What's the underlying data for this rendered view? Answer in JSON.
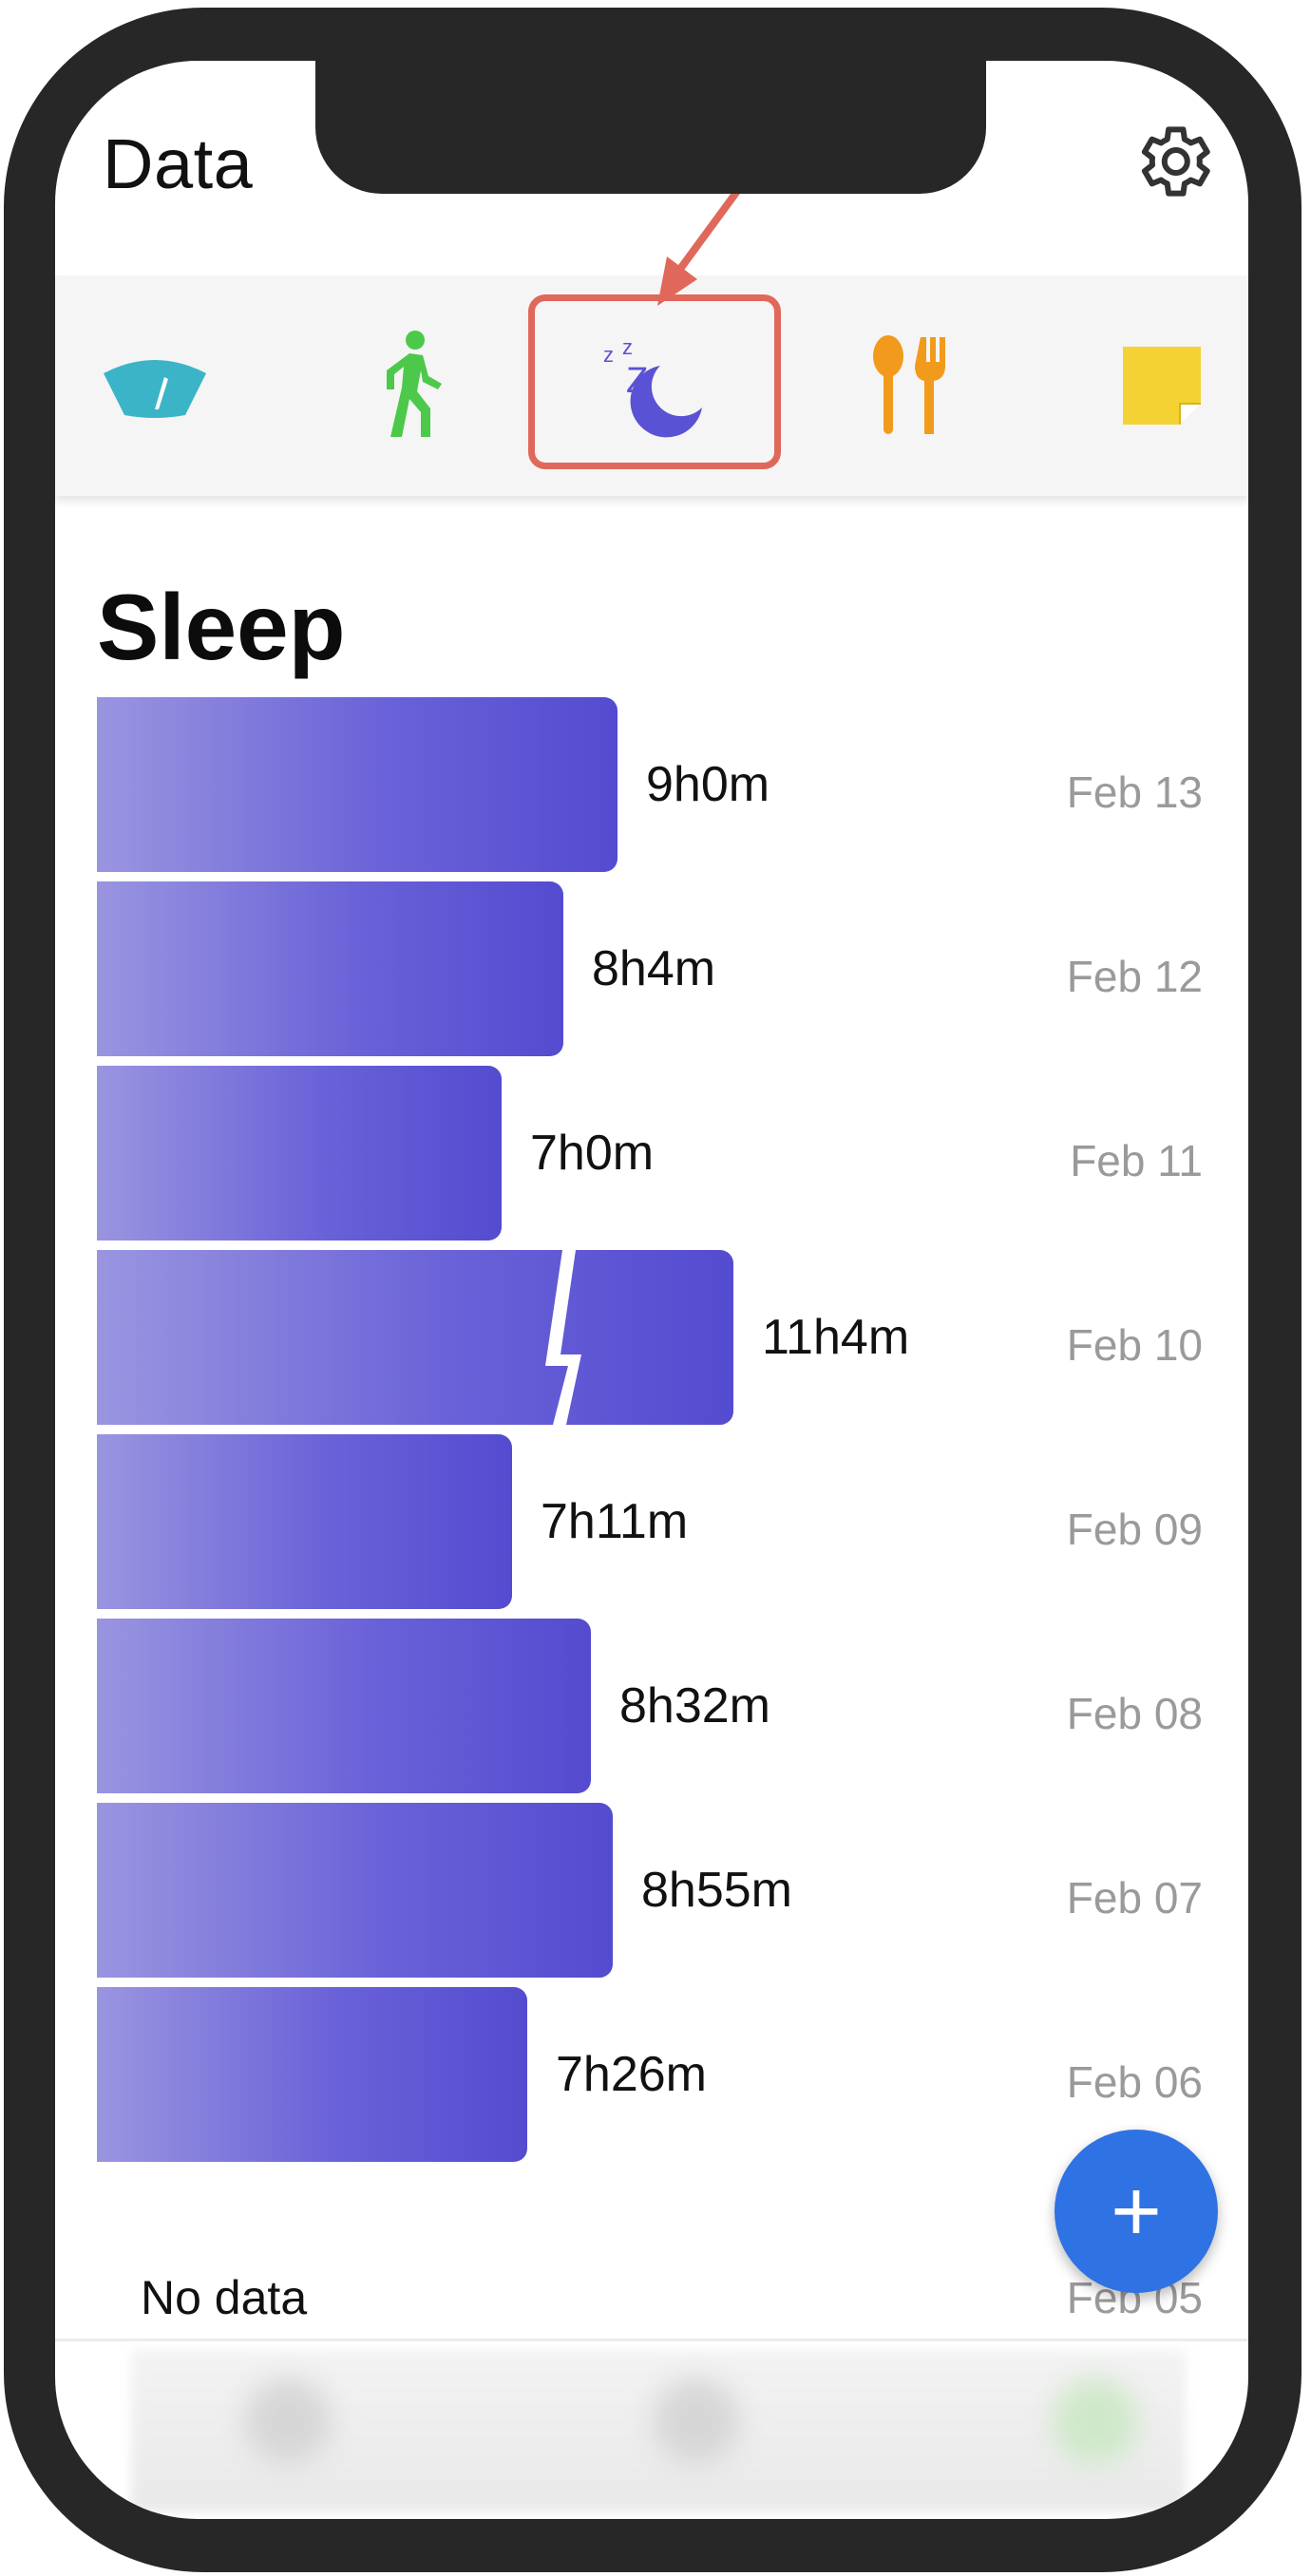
{
  "header": {
    "title": "Data"
  },
  "categories": [
    {
      "name": "weight",
      "icon": "scale-icon",
      "color": "#3cb4c8"
    },
    {
      "name": "activity",
      "icon": "walking-icon",
      "color": "#4cc94a"
    },
    {
      "name": "sleep",
      "icon": "sleep-moon-icon",
      "color": "#5a52d5",
      "selected": true
    },
    {
      "name": "food",
      "icon": "spoon-fork-icon",
      "color": "#f29a1c"
    },
    {
      "name": "notes",
      "icon": "sticky-note-icon",
      "color": "#f5d233"
    }
  ],
  "section": {
    "title": "Sleep"
  },
  "sleep_entries": [
    {
      "duration": "9h0m",
      "date": "Feb 13",
      "minutes": 540
    },
    {
      "duration": "8h4m",
      "date": "Feb 12",
      "minutes": 484
    },
    {
      "duration": "7h0m",
      "date": "Feb 11",
      "minutes": 420
    },
    {
      "duration": "11h4m",
      "date": "Feb 10",
      "minutes": 664,
      "broken_axis": true
    },
    {
      "duration": "7h11m",
      "date": "Feb 09",
      "minutes": 431
    },
    {
      "duration": "8h32m",
      "date": "Feb 08",
      "minutes": 512
    },
    {
      "duration": "8h55m",
      "date": "Feb 07",
      "minutes": 535
    },
    {
      "duration": "7h26m",
      "date": "Feb 06",
      "minutes": 446
    }
  ],
  "no_data_entry": {
    "label": "No data",
    "date": "Feb 05"
  },
  "fab": {
    "label": "+"
  },
  "colors": {
    "highlight": "#e0685a",
    "bar_start": "#9a95e0",
    "bar_end": "#544bd0",
    "fab": "#2f72e3"
  }
}
